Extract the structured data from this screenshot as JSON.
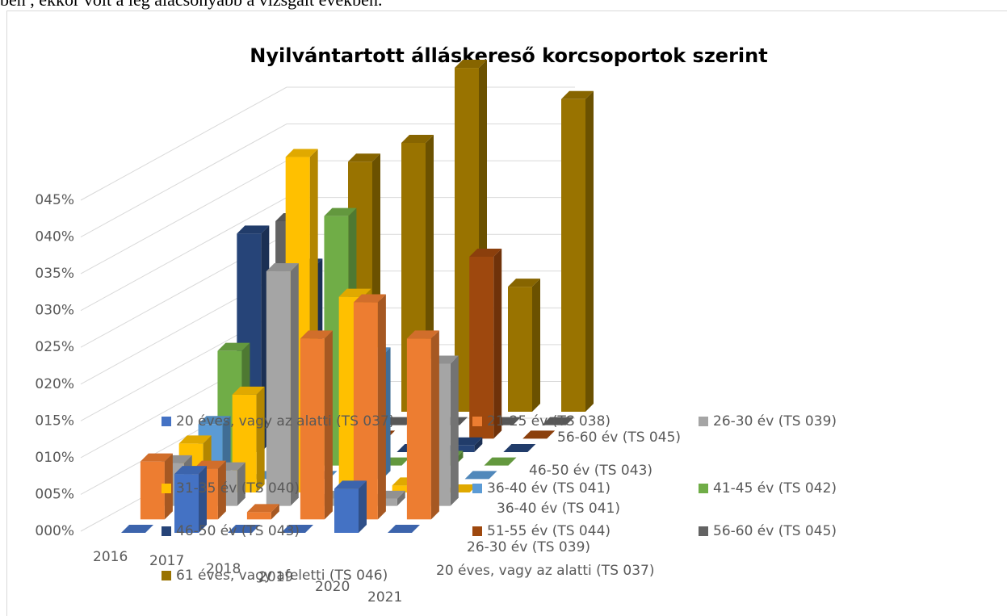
{
  "header_text": "ben , ekkor volt a leg alacsonyabb a vizsgált években.",
  "chart_data": {
    "type": "bar3d",
    "title": "Nyilvántartott álláskereső korcsoportok szerint",
    "categories": [
      "2016",
      "2017",
      "2018",
      "2019",
      "2020",
      "2021"
    ],
    "ylim": [
      0,
      45
    ],
    "yticks": [
      {
        "value": 0,
        "label": "000%"
      },
      {
        "value": 5,
        "label": "005%"
      },
      {
        "value": 10,
        "label": "010%"
      },
      {
        "value": 15,
        "label": "015%"
      },
      {
        "value": 20,
        "label": "020%"
      },
      {
        "value": 25,
        "label": "025%"
      },
      {
        "value": 30,
        "label": "030%"
      },
      {
        "value": 35,
        "label": "035%"
      },
      {
        "value": 40,
        "label": "040%"
      },
      {
        "value": 45,
        "label": "045%"
      }
    ],
    "grid": true,
    "series": [
      {
        "name": "20 éves, vagy az alatti (TS 037)",
        "color": "#4472c4",
        "values": [
          0,
          8,
          0,
          0,
          6,
          0
        ]
      },
      {
        "name": "21-25 év (TS 038)",
        "color": "#ed7d31",
        "values": [
          8,
          7,
          1,
          25,
          30,
          25
        ]
      },
      {
        "name": "26-30 év (TS 039)",
        "color": "#a5a5a5",
        "values": [
          6,
          5,
          33,
          1,
          1,
          20
        ]
      },
      {
        "name": "31-35 év (TS 040)",
        "color": "#ffc000",
        "values": [
          7,
          14,
          48,
          28,
          1,
          0
        ]
      },
      {
        "name": "36-40 év (TS 041)",
        "color": "#5b9bd5",
        "values": [
          8,
          0,
          0,
          18,
          1,
          0
        ]
      },
      {
        "name": "41-45 év (TS 042)",
        "color": "#70ad47",
        "values": [
          17,
          20,
          37,
          0,
          1,
          0
        ]
      },
      {
        "name": "46-50 év (TS 043)",
        "color": "#264478",
        "values": [
          33,
          28,
          0,
          0,
          1,
          0
        ]
      },
      {
        "name": "51-55 év (TS 044)",
        "color": "#9e480e",
        "values": [
          0,
          0,
          0,
          4,
          28,
          0
        ]
      },
      {
        "name": "56-60 év (TS 045)",
        "color": "#636363",
        "values": [
          32,
          0,
          0,
          0,
          0,
          0
        ]
      },
      {
        "name": "61 éves, vagy afeletti (TS 046)",
        "color": "#997300",
        "values": [
          0,
          40,
          43,
          55,
          20,
          50
        ]
      }
    ]
  }
}
